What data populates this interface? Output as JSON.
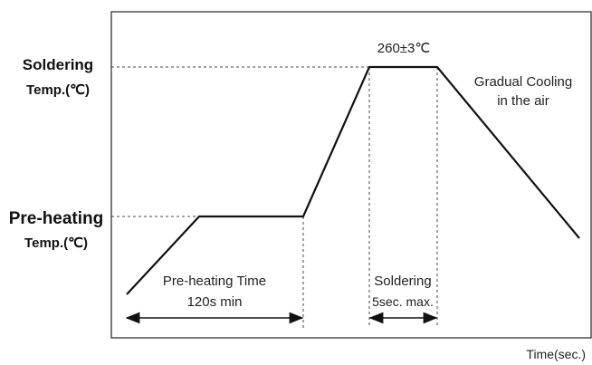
{
  "labels": {
    "soldering_temp_line1": "Soldering",
    "soldering_temp_line2": "Temp.(℃)",
    "preheating_temp_line1": "Pre-heating",
    "preheating_temp_line2": "Temp.(℃)",
    "peak_temp": "260±3℃",
    "cooling_line1": "Gradual Cooling",
    "cooling_line2": "in the air",
    "preheat_time_line1": "Pre-heating Time",
    "preheat_time_line2": "120s min",
    "soldering_time_line1": "Soldering",
    "soldering_time_line2": "5sec. max.",
    "x_axis": "Time(sec.)"
  }
}
